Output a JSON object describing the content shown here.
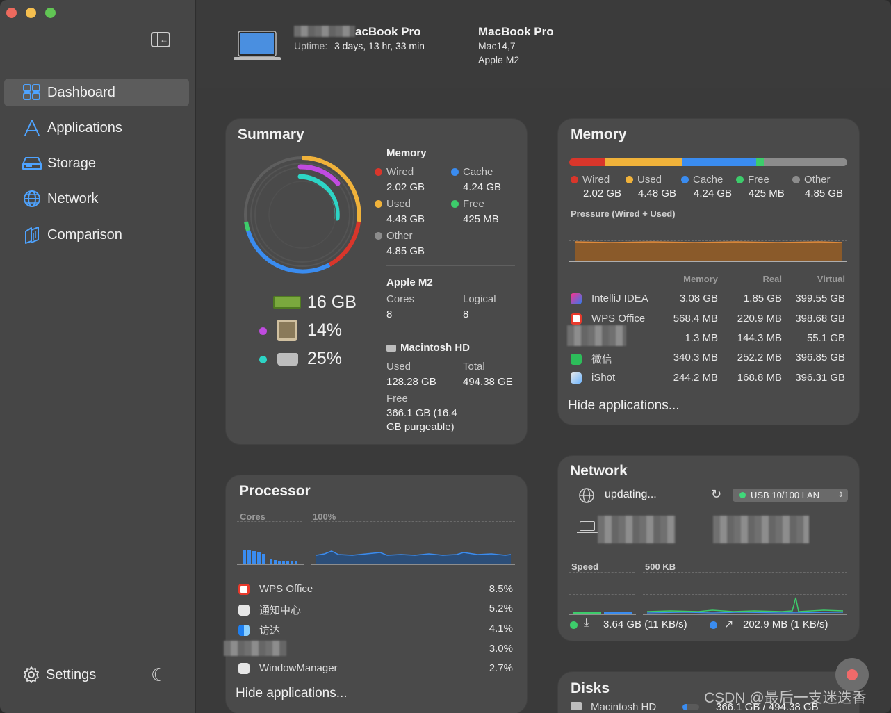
{
  "colors": {
    "accent": "#4ea3ff",
    "wired": "#d9362b",
    "used": "#f0b23a",
    "cache": "#3a8cf0",
    "free": "#3dcc6b",
    "other": "#8c8c8c",
    "cpu_dot": "#c04be0",
    "disk_dot": "#2dd4c5"
  },
  "sidebar": {
    "items": [
      {
        "label": "Dashboard",
        "icon": "dashboard-icon",
        "active": true
      },
      {
        "label": "Applications",
        "icon": "applications-icon"
      },
      {
        "label": "Storage",
        "icon": "storage-icon"
      },
      {
        "label": "Network",
        "icon": "network-globe-icon"
      },
      {
        "label": "Comparison",
        "icon": "comparison-icon"
      }
    ],
    "settings_label": "Settings"
  },
  "header": {
    "device_name": "acBook Pro",
    "uptime_label": "Uptime:",
    "uptime_value": "3 days, 13 hr, 33 min",
    "model_title": "MacBook Pro",
    "model_id": "Mac14,7",
    "chip": "Apple M2"
  },
  "summary": {
    "title": "Summary",
    "memory_heading": "Memory",
    "wired_label": "Wired",
    "wired_value": "2.02 GB",
    "cache_label": "Cache",
    "cache_value": "4.24 GB",
    "used_label": "Used",
    "used_value": "4.48 GB",
    "free_label": "Free",
    "free_value": "425 MB",
    "other_label": "Other",
    "other_value": "4.85 GB",
    "ram_total": "16 GB",
    "cpu_percent": "14%",
    "disk_percent": "25%",
    "cpu_heading": "Apple M2",
    "cores_label": "Cores",
    "cores_value": "8",
    "logical_label": "Logical",
    "logical_value": "8",
    "disk_heading": "Macintosh HD",
    "disk_used_label": "Used",
    "disk_used_value": "128.28 GB",
    "disk_total_label": "Total",
    "disk_total_value": "494.38 GE",
    "disk_free_label": "Free",
    "disk_free_line1": "366.1 GB (16.4",
    "disk_free_line2": "GB purgeable)"
  },
  "memory": {
    "title": "Memory",
    "legend": [
      {
        "label": "Wired",
        "value": "2.02 GB",
        "color": "#d9362b"
      },
      {
        "label": "Used",
        "value": "4.48 GB",
        "color": "#f0b23a"
      },
      {
        "label": "Cache",
        "value": "4.24 GB",
        "color": "#3a8cf0"
      },
      {
        "label": "Free",
        "value": "425 MB",
        "color": "#3dcc6b"
      },
      {
        "label": "Other",
        "value": "4.85 GB",
        "color": "#8c8c8c"
      }
    ],
    "pressure_label": "Pressure (Wired + Used)",
    "col_memory": "Memory",
    "col_real": "Real",
    "col_virtual": "Virtual",
    "apps": [
      {
        "name": "IntelliJ IDEA",
        "memory": "3.08 GB",
        "real": "1.85 GB",
        "virtual": "399.55 GB",
        "icon": "intellij-icon"
      },
      {
        "name": "WPS Office",
        "memory": "568.4 MB",
        "real": "220.9 MB",
        "virtual": "398.68 GB",
        "icon": "wps-office-icon"
      },
      {
        "name": "",
        "memory": "1.3 MB",
        "real": "144.3 MB",
        "virtual": "55.1 GB",
        "icon": "redacted-app-icon"
      },
      {
        "name": "微信",
        "memory": "340.3 MB",
        "real": "252.2 MB",
        "virtual": "396.85 GB",
        "icon": "wechat-icon"
      },
      {
        "name": "iShot",
        "memory": "244.2 MB",
        "real": "168.8 MB",
        "virtual": "396.31 GB",
        "icon": "ishot-icon"
      }
    ],
    "hide_label": "Hide applications..."
  },
  "processor": {
    "title": "Processor",
    "cores_label": "Cores",
    "usage_label": "100%",
    "apps": [
      {
        "name": "WPS Office",
        "value": "8.5%",
        "icon": "wps-office-icon"
      },
      {
        "name": "通知中心",
        "value": "5.2%",
        "icon": "notification-center-icon"
      },
      {
        "name": "访达",
        "value": "4.1%",
        "icon": "finder-icon"
      },
      {
        "name": "",
        "value": "3.0%",
        "icon": "redacted-app-icon"
      },
      {
        "name": "WindowManager",
        "value": "2.7%",
        "icon": "window-manager-icon"
      }
    ],
    "hide_label": "Hide applications..."
  },
  "network": {
    "title": "Network",
    "status": "updating...",
    "interface": "USB 10/100 LAN",
    "speed_label": "Speed",
    "scale_label": "500 KB",
    "download": "3.64 GB (11 KB/s)",
    "upload": "202.9 MB (1 KB/s)"
  },
  "disks": {
    "title": "Disks",
    "disk_name": "Macintosh HD",
    "disk_usage": "366.1 GB / 494.38 GB"
  },
  "watermark": "CSDN @最后一支迷迭香"
}
